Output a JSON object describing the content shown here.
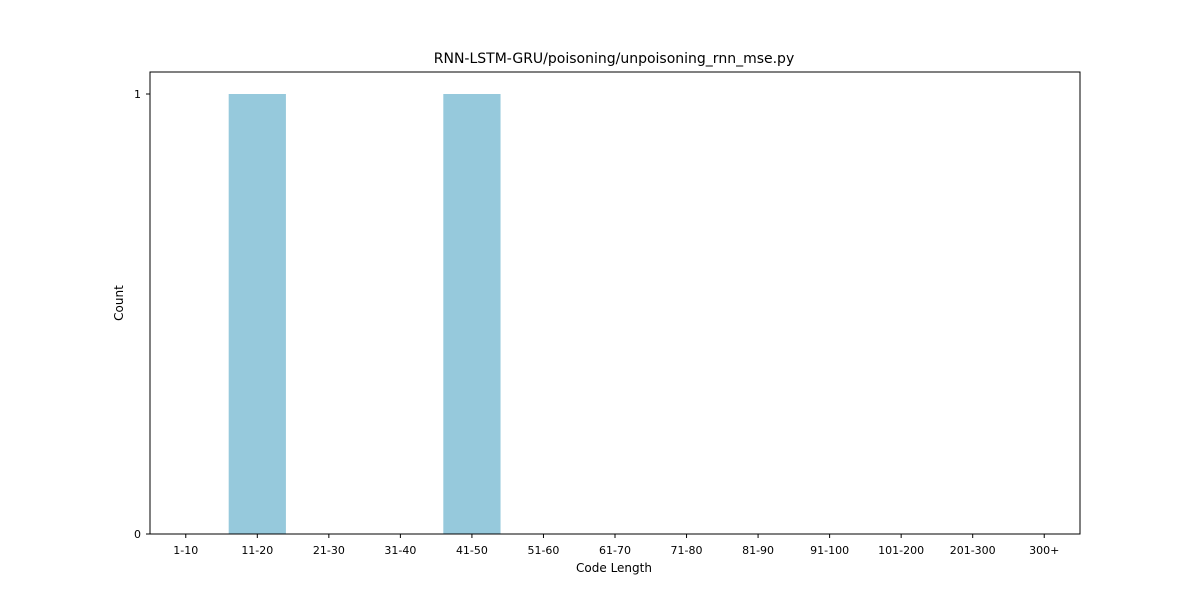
{
  "chart_data": {
    "type": "bar",
    "title": "RNN-LSTM-GRU/poisoning/unpoisoning_rnn_mse.py",
    "xlabel": "Code Length",
    "ylabel": "Count",
    "categories": [
      "1-10",
      "11-20",
      "21-30",
      "31-40",
      "41-50",
      "51-60",
      "61-70",
      "71-80",
      "81-90",
      "91-100",
      "101-200",
      "201-300",
      "300+"
    ],
    "values": [
      0,
      1,
      0,
      0,
      1,
      0,
      0,
      0,
      0,
      0,
      0,
      0,
      0
    ],
    "ylim": [
      0,
      1.05
    ],
    "yticks": [
      0,
      1
    ],
    "bar_color": "#96c9dc",
    "grid": false,
    "legend": "none"
  }
}
